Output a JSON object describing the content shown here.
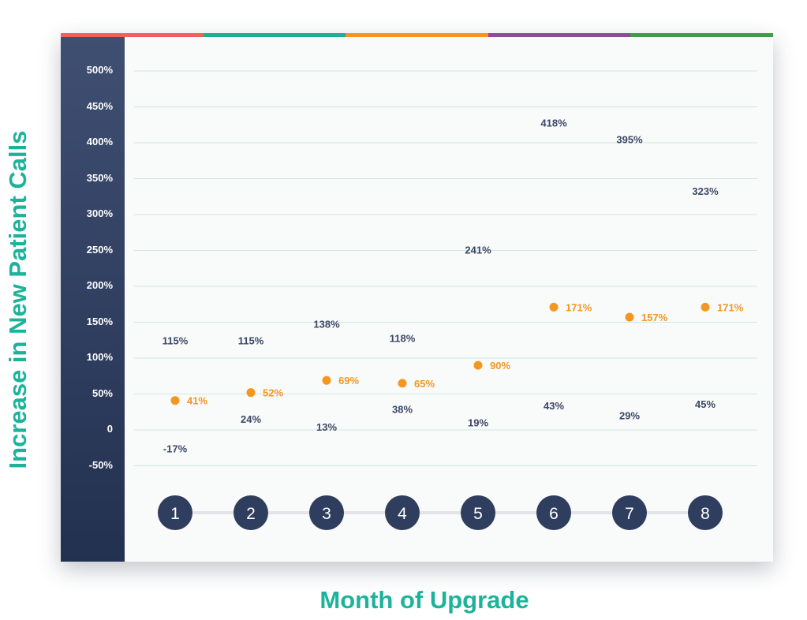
{
  "colors": {
    "accent_teal": "#1db39a",
    "band_dark": "#2a3756",
    "range_bar": "#4f5d7d",
    "marker": "#f5961f",
    "stripe": [
      "#f25f5c",
      "#1fae93",
      "#f7941d",
      "#8e4b9b",
      "#3f9e45"
    ]
  },
  "chart_data": {
    "type": "range",
    "xlabel": "Month of Upgrade",
    "ylabel": "Increase in New Patient Calls",
    "categories": [
      "1",
      "2",
      "3",
      "4",
      "5",
      "6",
      "7",
      "8"
    ],
    "ylim": [
      -50,
      500
    ],
    "yticks": [
      500,
      450,
      400,
      350,
      300,
      250,
      200,
      150,
      100,
      50,
      0,
      -50
    ],
    "ytick_labels": [
      "500%",
      "450%",
      "400%",
      "350%",
      "300%",
      "250%",
      "200%",
      "150%",
      "100%",
      "50%",
      "0",
      "-50%"
    ],
    "grid": true,
    "series": [
      {
        "high": [
          115,
          115,
          138,
          118,
          241,
          418,
          395,
          323
        ],
        "low": [
          -17,
          24,
          13,
          38,
          19,
          43,
          29,
          45
        ],
        "mid": [
          41,
          52,
          69,
          65,
          90,
          171,
          157,
          171
        ],
        "high_labels": [
          "115%",
          "115%",
          "138%",
          "118%",
          "241%",
          "418%",
          "395%",
          "323%"
        ],
        "low_labels": [
          "-17%",
          "24%",
          "13%",
          "38%",
          "19%",
          "43%",
          "29%",
          "45%"
        ],
        "mid_labels": [
          "41%",
          "52%",
          "69%",
          "65%",
          "90%",
          "171%",
          "157%",
          "171%"
        ]
      }
    ]
  }
}
